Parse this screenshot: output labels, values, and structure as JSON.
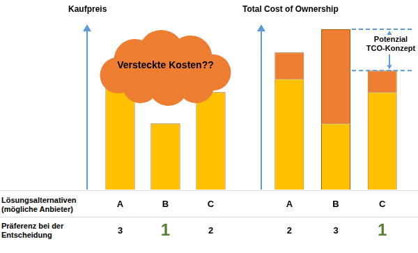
{
  "chart_data": [
    {
      "type": "bar",
      "title": "Kaufpreis",
      "annotation": "Versteckte Kosten??",
      "categories": [
        "A",
        "B",
        "C"
      ],
      "values": [
        67,
        40,
        59
      ],
      "color": "#ffc000",
      "preference": [
        3,
        1,
        2
      ],
      "ylim": [
        0,
        100
      ],
      "grid": false,
      "tick_labels": "x"
    },
    {
      "type": "bar",
      "title": "Total Cost of Ownership",
      "annotation": "Potenzial TCO-Konzept",
      "categories": [
        "A",
        "B",
        "C"
      ],
      "stacked": true,
      "series": [
        {
          "color": "#ffc000",
          "values": [
            67,
            40,
            59
          ]
        },
        {
          "color": "#ed7d31",
          "values": [
            16,
            57,
            13
          ]
        }
      ],
      "preference": [
        2,
        3,
        1
      ],
      "ylim": [
        0,
        100
      ],
      "grid": false,
      "tick_labels": "x"
    }
  ],
  "row_labels": [
    [
      "Lösungsalternativen",
      "(mögliche Anbieter)"
    ],
    [
      "Präferenz bei der",
      "Entscheidung"
    ]
  ]
}
